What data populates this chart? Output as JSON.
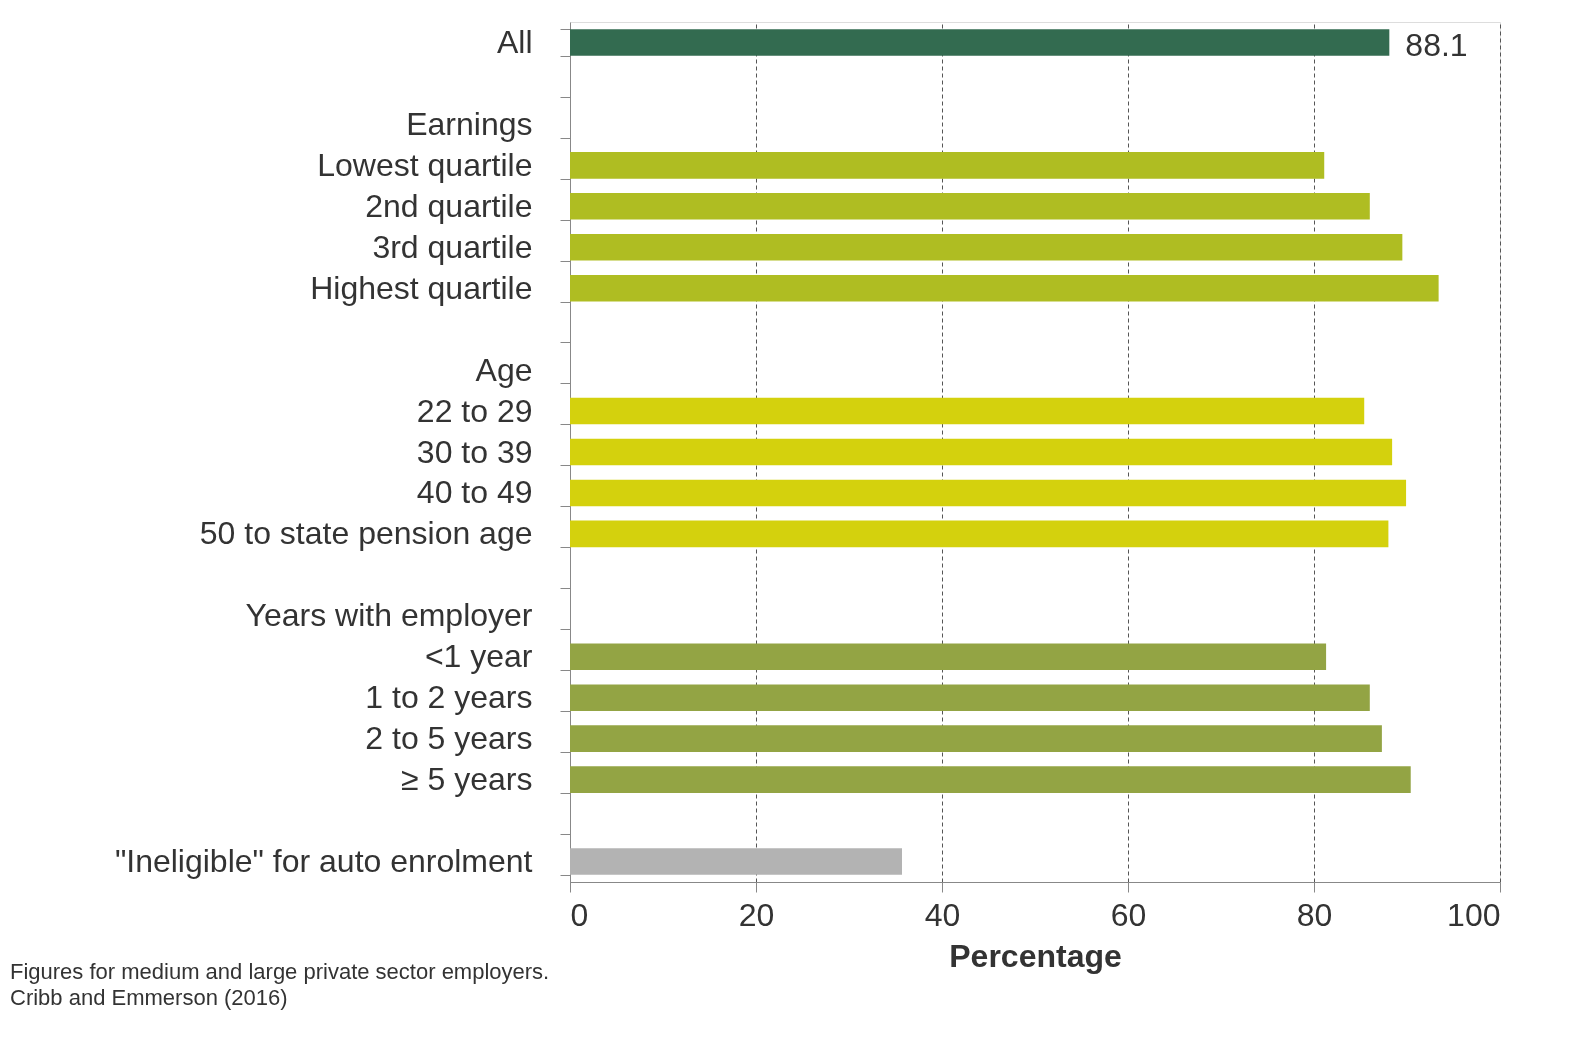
{
  "chart_data": {
    "type": "bar",
    "orientation": "horizontal",
    "xlabel": "Percentage",
    "categories": [
      "All",
      null,
      "Earnings",
      "Lowest quartile",
      "2nd quartile",
      "3rd quartile",
      "Highest quartile",
      null,
      "Age",
      "22 to 29",
      "30 to 39",
      "40 to 49",
      "50 to state pension age",
      null,
      "Years with employer",
      "<1 year",
      "1 to 2 years",
      "2 to 5 years",
      "≥ 5 years",
      null,
      "\"Ineligible\" for auto enrolment"
    ],
    "values": [
      88.1,
      null,
      null,
      81.1,
      86.0,
      89.5,
      93.4,
      null,
      null,
      85.4,
      88.4,
      89.9,
      88.0,
      null,
      null,
      81.3,
      86.0,
      87.3,
      90.4,
      null,
      35.7
    ],
    "colors": [
      "#336b50",
      null,
      null,
      "#afbd22",
      "#afbd22",
      "#afbd22",
      "#afbd22",
      null,
      null,
      "#d4d10d",
      "#d4d10d",
      "#d4d10d",
      "#d4d10d",
      null,
      null,
      "#93a444",
      "#93a444",
      "#93a444",
      "#93a444",
      null,
      "#b3b3b3"
    ],
    "value_labels": [
      "88.1",
      null,
      null,
      null,
      null,
      null,
      null,
      null,
      null,
      null,
      null,
      null,
      null,
      null,
      null,
      null,
      null,
      null,
      null,
      null,
      null
    ],
    "xlim": [
      0,
      100
    ],
    "xticks": [
      0,
      20,
      40,
      60,
      80,
      100
    ],
    "grid": "x",
    "annotations": [
      "Figures for medium and large private sector employers.",
      "Cribb and Emmerson (2016)"
    ]
  }
}
